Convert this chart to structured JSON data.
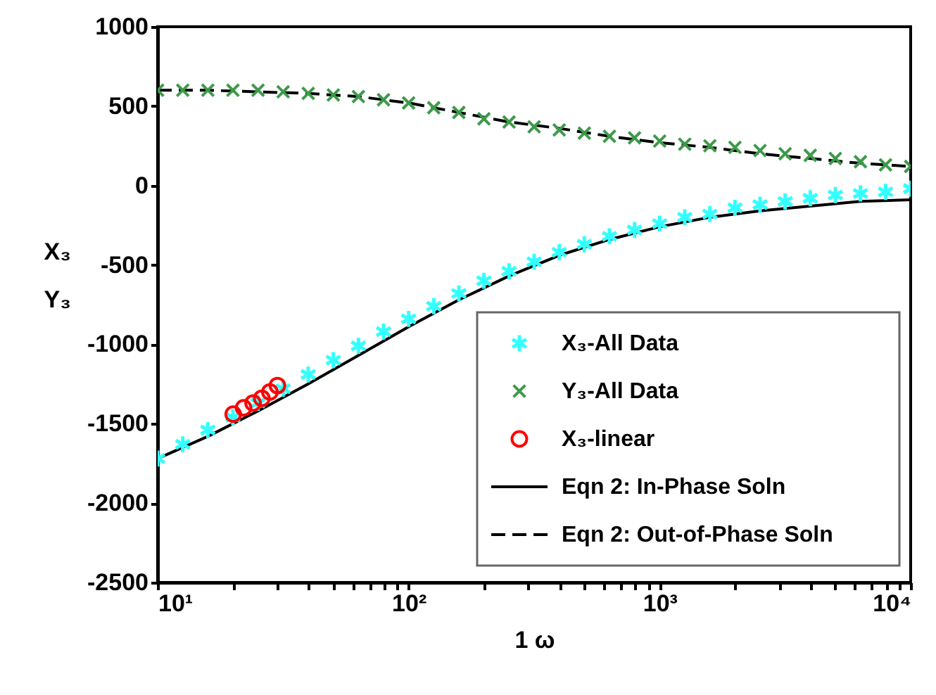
{
  "chart_data": {
    "type": "scatter",
    "xlabel": "1 ω",
    "ylabel": "X₃\nY₃",
    "log": "x",
    "xlim": [
      10,
      10000
    ],
    "xticks": [
      {
        "value": 10,
        "label": "10¹"
      },
      {
        "value": 20,
        "label": null
      },
      {
        "value": 30,
        "label": null
      },
      {
        "value": 40,
        "label": null
      },
      {
        "value": 50,
        "label": null
      },
      {
        "value": 60,
        "label": null
      },
      {
        "value": 70,
        "label": null
      },
      {
        "value": 80,
        "label": null
      },
      {
        "value": 90,
        "label": null
      },
      {
        "value": 100,
        "label": "10²"
      },
      {
        "value": 200,
        "label": null
      },
      {
        "value": 300,
        "label": null
      },
      {
        "value": 400,
        "label": null
      },
      {
        "value": 500,
        "label": null
      },
      {
        "value": 600,
        "label": null
      },
      {
        "value": 700,
        "label": null
      },
      {
        "value": 800,
        "label": null
      },
      {
        "value": 900,
        "label": null
      },
      {
        "value": 1000,
        "label": "10³"
      },
      {
        "value": 2000,
        "label": null
      },
      {
        "value": 3000,
        "label": null
      },
      {
        "value": 4000,
        "label": null
      },
      {
        "value": 5000,
        "label": null
      },
      {
        "value": 6000,
        "label": null
      },
      {
        "value": 7000,
        "label": null
      },
      {
        "value": 8000,
        "label": null
      },
      {
        "value": 9000,
        "label": null
      },
      {
        "value": 10000,
        "label": "10⁴"
      }
    ],
    "ylim": [
      -2500,
      1000
    ],
    "yticks": [
      -2500,
      -2000,
      -1500,
      -1000,
      -500,
      0,
      500,
      1000
    ],
    "grid": false,
    "legend": "bottom right",
    "series": [
      {
        "name": "X₃-All Data",
        "color": "#33ffff",
        "x": [
          10,
          12.59,
          15.85,
          19.95,
          25.12,
          31.62,
          39.81,
          50.12,
          63.1,
          79.43,
          100,
          125.9,
          158.5,
          199.5,
          251.2,
          316.2,
          398.1,
          501.2,
          631,
          794.3,
          1000,
          1259,
          1585,
          1995,
          2512,
          3162,
          3981,
          5012,
          6310,
          7943,
          10000
        ],
        "values": [
          -1720,
          -1630,
          -1540,
          -1460,
          -1370,
          -1280,
          -1190,
          -1100,
          -1010,
          -920,
          -840,
          -760,
          -680,
          -600,
          -540,
          -480,
          -420,
          -370,
          -320,
          -280,
          -240,
          -200,
          -180,
          -140,
          -120,
          -100,
          -80,
          -60,
          -50,
          -40,
          -20
        ]
      },
      {
        "name": "Y₃-All Data",
        "marker": "cross",
        "color": "#3d9a4a",
        "x": [
          10,
          12.59,
          15.85,
          19.95,
          25.12,
          31.62,
          39.81,
          50.12,
          63.1,
          79.43,
          100,
          125.9,
          158.5,
          199.5,
          251.2,
          316.2,
          398.1,
          501.2,
          631,
          794.3,
          1000,
          1259,
          1585,
          1995,
          2512,
          3162,
          3981,
          5012,
          6310,
          7943,
          10000
        ],
        "values": [
          600,
          600,
          600,
          600,
          600,
          590,
          580,
          570,
          560,
          540,
          520,
          490,
          460,
          420,
          400,
          370,
          350,
          330,
          310,
          300,
          280,
          260,
          250,
          240,
          220,
          200,
          190,
          170,
          150,
          130,
          120
        ]
      },
      {
        "name": "X₃-linear",
        "marker": "circle",
        "color": "#ff0000",
        "x": [
          20,
          22,
          24,
          26,
          28,
          30
        ],
        "values": [
          -1440,
          -1400,
          -1370,
          -1340,
          -1300,
          -1260
        ]
      },
      {
        "name": "Eqn 2: In-Phase Soln",
        "type": "line",
        "line_style": "solid",
        "color": "#000000",
        "x": [
          10,
          15.85,
          25.12,
          39.81,
          63.1,
          100,
          158.5,
          251.2,
          398.1,
          631,
          1000,
          1585,
          2512,
          3981,
          6310,
          10000
        ],
        "values": [
          -1720,
          -1580,
          -1420,
          -1250,
          -1070,
          -890,
          -720,
          -570,
          -440,
          -340,
          -260,
          -200,
          -160,
          -130,
          -100,
          -90
        ]
      },
      {
        "name": "Eqn 2: Out-of-Phase Soln",
        "type": "line",
        "line_style": "dashed",
        "color": "#000000",
        "x": [
          10,
          15.85,
          25.12,
          39.81,
          63.1,
          100,
          158.5,
          251.2,
          398.1,
          631,
          1000,
          1585,
          2512,
          3981,
          6310,
          10000
        ],
        "values": [
          600,
          600,
          590,
          580,
          560,
          520,
          460,
          400,
          360,
          310,
          270,
          240,
          200,
          170,
          140,
          120
        ]
      }
    ]
  }
}
